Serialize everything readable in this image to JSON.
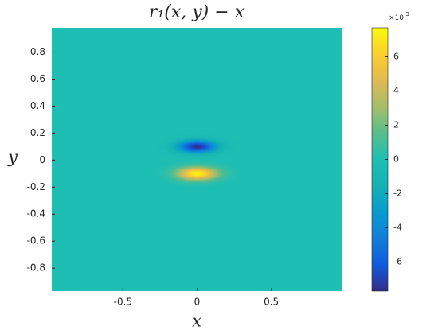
{
  "chart_data": {
    "type": "heatmap",
    "title": "r₁(x, y) − x",
    "x_label": "x",
    "y_label": "y",
    "colormap": "parula",
    "xlim": [
      -0.98,
      0.98
    ],
    "ylim": [
      -0.97,
      0.98
    ],
    "xticks": [
      -0.5,
      0,
      0.5
    ],
    "yticks": [
      -0.8,
      -0.6,
      -0.4,
      -0.2,
      0,
      0.2,
      0.4,
      0.6,
      0.8
    ],
    "background_value": 0,
    "peaks": [
      {
        "x": 0,
        "y": 0.1,
        "value": -0.0076,
        "rx": 0.28,
        "ry": 0.1
      },
      {
        "x": 0,
        "y": -0.1,
        "value": 0.0075,
        "rx": 0.28,
        "ry": 0.1
      }
    ],
    "clim": [
      -0.0077,
      0.0077
    ],
    "cticks": [
      {
        "value": -0.006,
        "label": "-6"
      },
      {
        "value": -0.004,
        "label": "-4"
      },
      {
        "value": -0.002,
        "label": "-2"
      },
      0,
      {
        "value": 0.002,
        "label": "2"
      },
      {
        "value": 0.004,
        "label": "4"
      },
      {
        "value": 0.006,
        "label": "6"
      }
    ],
    "colorbar_scale": {
      "base": "×10",
      "exponent": "-3"
    }
  }
}
